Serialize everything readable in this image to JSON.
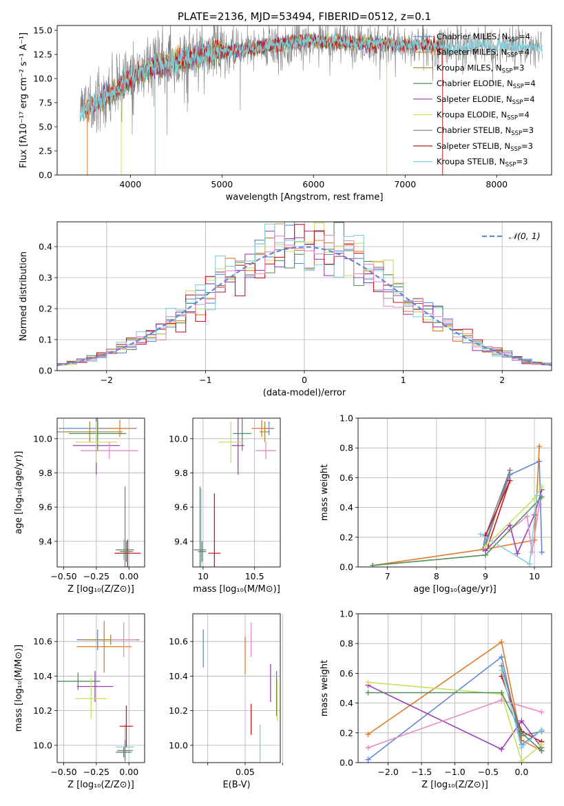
{
  "colors": {
    "blue": "#5f87d6",
    "orange": "#e07a25",
    "olive": "#a68a3a",
    "green": "#4f8f5f",
    "purple": "#9c3fb5",
    "yellowgreen": "#c7e060",
    "gray": "#7f7f7f",
    "red": "#c01a1a",
    "cyan": "#80d0dc",
    "pink": "#e78ac3",
    "gaussian": "#5f87d6"
  },
  "chart_data": [
    {
      "id": "spectrum",
      "type": "line",
      "title": "PLATE=2136, MJD=53494, FIBERID=0512, z=0.1",
      "xlabel": "wavelength [Angstrom, rest frame]",
      "ylabel": "Flux [fλ10⁻¹⁷ erg cm⁻² s⁻¹ A⁻¹]",
      "xlim": [
        3200,
        8600
      ],
      "ylim": [
        0,
        15.5
      ],
      "xticks": [
        4000,
        5000,
        6000,
        7000,
        8000
      ],
      "yticks": [
        0.0,
        2.5,
        5.0,
        7.5,
        10.0,
        12.5,
        15.0
      ],
      "grid": false,
      "legend_placement": "right",
      "envelope": {
        "x": [
          3450,
          3600,
          3800,
          4000,
          4200,
          4400,
          4600,
          4800,
          5000,
          5200,
          5400,
          5600,
          5800,
          6000,
          6200,
          6400,
          6600,
          6800,
          7000,
          7200,
          7400,
          7600,
          7800,
          8000,
          8200,
          8500
        ],
        "y": [
          6.4,
          7.3,
          8.5,
          10.0,
          11.0,
          11.5,
          12.0,
          12.5,
          12.8,
          13.0,
          13.2,
          13.5,
          13.8,
          13.9,
          13.8,
          13.7,
          13.6,
          13.6,
          13.4,
          13.5,
          13.3,
          13.2,
          13.5,
          13.4,
          13.3,
          13.2
        ]
      },
      "series": [
        {
          "name": "Chabrier MILES, N_SSP=4",
          "color": "#5f87d6",
          "xrange": [
            3500,
            7450
          ]
        },
        {
          "name": "Salpeter MILES, N_SSP=4",
          "color": "#e07a25",
          "xrange": [
            3500,
            7450
          ]
        },
        {
          "name": "Kroupa MILES, N_SSP=3",
          "color": "#a68a3a",
          "xrange": [
            3500,
            7450
          ]
        },
        {
          "name": "Chabrier ELODIE, N_SSP=4",
          "color": "#4f8f5f",
          "xrange": [
            3900,
            6800
          ]
        },
        {
          "name": "Salpeter ELODIE, N_SSP=4",
          "color": "#9c3fb5",
          "xrange": [
            3900,
            6800
          ]
        },
        {
          "name": "Kroupa ELODIE, N_SSP=4",
          "color": "#c7e060",
          "xrange": [
            3900,
            6800
          ]
        },
        {
          "name": "Chabrier STELIB, N_SSP=3",
          "color": "#7f7f7f",
          "xrange": [
            3450,
            8500
          ]
        },
        {
          "name": "Salpeter STELIB, N_SSP=3",
          "color": "#c01a1a",
          "xrange": [
            3500,
            7400
          ]
        },
        {
          "name": "Kroupa STELIB, N_SSP=3",
          "color": "#80d0dc",
          "xrange": [
            3450,
            8500
          ]
        }
      ]
    },
    {
      "id": "residuals",
      "type": "line",
      "xlabel": "(data-model)/error",
      "ylabel": "Normed distribution",
      "xlim": [
        -2.5,
        2.5
      ],
      "ylim": [
        0,
        0.48
      ],
      "xticks": [
        -2,
        -1,
        0,
        1,
        2
      ],
      "yticks": [
        0.0,
        0.1,
        0.2,
        0.3,
        0.4
      ],
      "grid": true,
      "legend_placement": "top-right",
      "legend": [
        "𝒩(0, 1)"
      ],
      "bin_width": 0.1,
      "histogram_colors": [
        "#5f87d6",
        "#e07a25",
        "#4f8f5f",
        "#9c3fb5",
        "#c7e060",
        "#c01a1a",
        "#80d0dc",
        "#e78ac3"
      ]
    },
    {
      "id": "age-vs-Z",
      "type": "scatter",
      "xlabel": "Z [log₁₀(Z/Z⊙)]",
      "ylabel": "age  [log₁₀(age/yr)]",
      "xlim": [
        -0.55,
        0.12
      ],
      "ylim": [
        9.25,
        10.12
      ],
      "xticks": [
        -0.5,
        -0.25,
        0.0
      ],
      "xticklabels": [
        "−0.50",
        "−0.25",
        "0.00"
      ],
      "yticks": [
        9.4,
        9.6,
        9.8,
        10.0
      ],
      "grid": true,
      "points": [
        {
          "x": -0.24,
          "y": 10.06,
          "xerr": 0.3,
          "yerr": 0.04,
          "color": "#5f87d6"
        },
        {
          "x": -0.07,
          "y": 10.06,
          "xerr": 0.1,
          "yerr": 0.05,
          "color": "#e07a25"
        },
        {
          "x": -0.3,
          "y": 10.04,
          "xerr": 0.25,
          "yerr": 0.06,
          "color": "#a68a3a"
        },
        {
          "x": -0.24,
          "y": 10.03,
          "xerr": 0.22,
          "yerr": 0.1,
          "color": "#4f8f5f"
        },
        {
          "x": -0.25,
          "y": 9.96,
          "xerr": 0.18,
          "yerr": 0.17,
          "color": "#9c3fb5"
        },
        {
          "x": -0.25,
          "y": 9.98,
          "xerr": 0.16,
          "yerr": 0.12,
          "color": "#c7e060"
        },
        {
          "x": -0.15,
          "y": 9.93,
          "xerr": 0.22,
          "yerr": 0.05,
          "color": "#e78ac3"
        },
        {
          "x": -0.04,
          "y": 9.35,
          "xerr": 0.06,
          "yerr": 0.06,
          "color": "#80d0dc"
        },
        {
          "x": -0.03,
          "y": 9.35,
          "xerr": 0.07,
          "yerr": 0.37,
          "color": "#7f7f7f"
        },
        {
          "x": -0.01,
          "y": 9.33,
          "xerr": 0.1,
          "yerr": 0.08,
          "color": "#c01a1a"
        },
        {
          "x": -0.02,
          "y": 9.34,
          "xerr": 0.05,
          "yerr": 0.06,
          "color": "#4f8f5f"
        }
      ]
    },
    {
      "id": "age-vs-mass",
      "type": "scatter",
      "xlabel": "mass [log₁₀(M/M⊙)]",
      "ylabel": "",
      "xlim": [
        9.9,
        10.75
      ],
      "ylim": [
        9.25,
        10.12
      ],
      "xticks": [
        10.0,
        10.5
      ],
      "yticks": [
        9.4,
        9.6,
        9.8,
        10.0
      ],
      "grid": true,
      "points": [
        {
          "x": 10.64,
          "y": 10.06,
          "xerr": 0.05,
          "yerr": 0.04,
          "color": "#5f87d6"
        },
        {
          "x": 10.57,
          "y": 10.06,
          "xerr": 0.1,
          "yerr": 0.05,
          "color": "#e07a25"
        },
        {
          "x": 10.6,
          "y": 10.04,
          "xerr": 0.05,
          "yerr": 0.06,
          "color": "#a68a3a"
        },
        {
          "x": 10.38,
          "y": 10.03,
          "xerr": 0.09,
          "yerr": 0.1,
          "color": "#4f8f5f"
        },
        {
          "x": 10.34,
          "y": 9.96,
          "xerr": 0.06,
          "yerr": 0.17,
          "color": "#9c3fb5"
        },
        {
          "x": 10.27,
          "y": 9.98,
          "xerr": 0.12,
          "yerr": 0.12,
          "color": "#c7e060"
        },
        {
          "x": 10.61,
          "y": 9.93,
          "xerr": 0.1,
          "yerr": 0.05,
          "color": "#e78ac3"
        },
        {
          "x": 9.98,
          "y": 9.34,
          "xerr": 0.02,
          "yerr": 0.37,
          "color": "#80d0dc"
        },
        {
          "x": 9.97,
          "y": 9.35,
          "xerr": 0.06,
          "yerr": 0.37,
          "color": "#7f7f7f"
        },
        {
          "x": 10.11,
          "y": 9.33,
          "xerr": 0.06,
          "yerr": 0.35,
          "color": "#c01a1a"
        },
        {
          "x": 9.99,
          "y": 9.34,
          "xerr": 0.04,
          "yerr": 0.06,
          "color": "#4f8f5f"
        }
      ]
    },
    {
      "id": "weight-vs-age",
      "type": "line",
      "xlabel": "age  [log₁₀(age/yr)]",
      "ylabel": "mass weight",
      "xlim": [
        6.4,
        10.35
      ],
      "ylim": [
        0,
        1.0
      ],
      "xticks": [
        7,
        8,
        9,
        10
      ],
      "yticks": [
        0.0,
        0.2,
        0.4,
        0.6,
        0.8,
        1.0
      ],
      "grid": true,
      "series": [
        {
          "color": "#5f87d6",
          "x": [
            9.0,
            8.95,
            9.5,
            10.1,
            10.15
          ],
          "y": [
            0.22,
            0.12,
            0.62,
            0.71,
            0.1
          ]
        },
        {
          "color": "#e07a25",
          "x": [
            6.7,
            9.0,
            10.0,
            10.1
          ],
          "y": [
            0.01,
            0.12,
            0.18,
            0.81
          ]
        },
        {
          "color": "#7f7f7f",
          "x": [
            9.0,
            9.5,
            9.0
          ],
          "y": [
            0.21,
            0.65,
            0.14
          ]
        },
        {
          "color": "#c01a1a",
          "x": [
            9.0,
            9.5,
            9.05
          ],
          "y": [
            0.21,
            0.58,
            0.14
          ]
        },
        {
          "color": "#9c3fb5",
          "x": [
            9.0,
            9.5,
            9.65,
            10.0,
            10.15
          ],
          "y": [
            0.11,
            0.28,
            0.09,
            0.35,
            0.52
          ]
        },
        {
          "color": "#e78ac3",
          "x": [
            9.5,
            9.85,
            9.95,
            10.1
          ],
          "y": [
            0.25,
            0.34,
            0.1,
            0.42
          ]
        },
        {
          "color": "#c7e060",
          "x": [
            9.0,
            10.0,
            10.15
          ],
          "y": [
            0.14,
            0.46,
            0.54
          ]
        },
        {
          "color": "#4f8f5f",
          "x": [
            6.7,
            9.0,
            10.15
          ],
          "y": [
            0.01,
            0.08,
            0.47
          ]
        },
        {
          "color": "#80d0dc",
          "x": [
            8.9,
            9.9,
            10.05
          ],
          "y": [
            0.22,
            0.02,
            0.48
          ]
        }
      ]
    },
    {
      "id": "mass-vs-Z",
      "type": "scatter",
      "xlabel": "Z [log₁₀(Z/Z⊙)]",
      "ylabel": "mass [log₁₀(M/M⊙)]",
      "xlim": [
        -0.55,
        0.12
      ],
      "ylim": [
        9.9,
        10.76
      ],
      "xticks": [
        -0.5,
        -0.25,
        0.0
      ],
      "xticklabels": [
        "−0.50",
        "−0.25",
        "0.00"
      ],
      "yticks": [
        10.0,
        10.2,
        10.4,
        10.6
      ],
      "grid": true,
      "points": [
        {
          "x": -0.24,
          "y": 10.61,
          "xerr": 0.16,
          "yerr": 0.06,
          "color": "#5f87d6"
        },
        {
          "x": -0.19,
          "y": 10.57,
          "xerr": 0.21,
          "yerr": 0.15,
          "color": "#e07a25"
        },
        {
          "x": -0.14,
          "y": 10.61,
          "xerr": 0.22,
          "yerr": 0.03,
          "color": "#a68a3a"
        },
        {
          "x": -0.39,
          "y": 10.37,
          "xerr": 0.17,
          "yerr": 0.05,
          "color": "#4f8f5f"
        },
        {
          "x": -0.26,
          "y": 10.34,
          "xerr": 0.14,
          "yerr": 0.09,
          "color": "#9c3fb5"
        },
        {
          "x": -0.29,
          "y": 10.27,
          "xerr": 0.12,
          "yerr": 0.12,
          "color": "#c7e060"
        },
        {
          "x": -0.04,
          "y": 10.61,
          "xerr": 0.1,
          "yerr": 0.1,
          "color": "#e78ac3"
        },
        {
          "x": -0.03,
          "y": 9.99,
          "xerr": 0.07,
          "yerr": 0.13,
          "color": "#80d0dc"
        },
        {
          "x": -0.03,
          "y": 9.97,
          "xerr": 0.06,
          "yerr": 0.06,
          "color": "#7f7f7f"
        },
        {
          "x": -0.02,
          "y": 10.11,
          "xerr": 0.05,
          "yerr": 0.12,
          "color": "#c01a1a"
        },
        {
          "x": -0.04,
          "y": 9.96,
          "xerr": 0.06,
          "yerr": 0.03,
          "color": "#4f8f5f"
        }
      ]
    },
    {
      "id": "mass-vs-EBV",
      "type": "scatter",
      "xlabel": "E(B-V)",
      "ylabel": "",
      "xlim": [
        0.015,
        0.0735
      ],
      "ylim": [
        9.9,
        10.76
      ],
      "xticks": [
        0.025,
        0.05,
        0.075
      ],
      "xticklabels": [
        "",
        "0.05",
        ""
      ],
      "yticks": [
        10.0,
        10.2,
        10.4,
        10.6
      ],
      "grid": true,
      "points": [
        {
          "x": 0.022,
          "y": 10.56,
          "xerr": 0,
          "yerr": 0.11,
          "color": "#5f87d6"
        },
        {
          "x": 0.05,
          "y": 10.52,
          "xerr": 0,
          "yerr": 0.11,
          "color": "#e07a25"
        },
        {
          "x": 0.054,
          "y": 10.61,
          "xerr": 0,
          "yerr": 0.1,
          "color": "#e78ac3"
        },
        {
          "x": 0.054,
          "y": 10.15,
          "xerr": 0,
          "yerr": 0.09,
          "color": "#c01a1a"
        },
        {
          "x": 0.06,
          "y": 10.01,
          "xerr": 0,
          "yerr": 0.11,
          "color": "#80d0dc"
        },
        {
          "x": 0.067,
          "y": 10.36,
          "xerr": 0,
          "yerr": 0.11,
          "color": "#9c3fb5"
        },
        {
          "x": 0.071,
          "y": 10.3,
          "xerr": 0,
          "yerr": 0.13,
          "color": "#4f8f5f"
        },
        {
          "x": 0.0715,
          "y": 10.26,
          "xerr": 0,
          "yerr": 0.12,
          "color": "#c7e060"
        }
      ]
    },
    {
      "id": "weight-vs-Z",
      "type": "line",
      "xlabel": "Z [log₁₀(Z/Z⊙)]",
      "ylabel": "mass weight",
      "xlim": [
        -2.45,
        0.45
      ],
      "ylim": [
        0,
        1.0
      ],
      "xticks": [
        -2.0,
        -1.5,
        -1.0,
        -0.5,
        0.0
      ],
      "xticklabels": [
        "−2.0",
        "−1.5",
        "−1.0",
        "−0.5",
        "0.0"
      ],
      "yticks": [
        0.0,
        0.2,
        0.4,
        0.6,
        0.8,
        1.0
      ],
      "grid": true,
      "series": [
        {
          "color": "#5f87d6",
          "x": [
            -2.3,
            -0.3,
            0.0,
            0.3
          ],
          "y": [
            0.02,
            0.71,
            0.12,
            0.22
          ]
        },
        {
          "color": "#e07a25",
          "x": [
            -2.3,
            -0.3,
            0.0,
            0.3
          ],
          "y": [
            0.19,
            0.81,
            0.15,
            0.08
          ]
        },
        {
          "color": "#c01a1a",
          "x": [
            -0.3,
            0.0,
            0.3
          ],
          "y": [
            0.58,
            0.21,
            0.14
          ]
        },
        {
          "color": "#7f7f7f",
          "x": [
            -0.3,
            0.0,
            0.3
          ],
          "y": [
            0.65,
            0.18,
            0.21
          ]
        },
        {
          "color": "#9c3fb5",
          "x": [
            -2.3,
            -0.3,
            0.0,
            0.3
          ],
          "y": [
            0.52,
            0.09,
            0.28,
            0.1
          ]
        },
        {
          "color": "#e78ac3",
          "x": [
            -2.3,
            -0.3,
            0.3
          ],
          "y": [
            0.1,
            0.42,
            0.34
          ]
        },
        {
          "color": "#c7e060",
          "x": [
            -2.3,
            -0.3,
            0.0,
            0.3
          ],
          "y": [
            0.54,
            0.46,
            0.01,
            0.12
          ]
        },
        {
          "color": "#4f8f5f",
          "x": [
            -2.3,
            -0.3,
            0.0,
            0.3
          ],
          "y": [
            0.47,
            0.47,
            0.2,
            0.08
          ]
        },
        {
          "color": "#80d0dc",
          "x": [
            -0.3,
            0.0,
            0.3
          ],
          "y": [
            0.62,
            0.1,
            0.22
          ]
        }
      ]
    }
  ]
}
